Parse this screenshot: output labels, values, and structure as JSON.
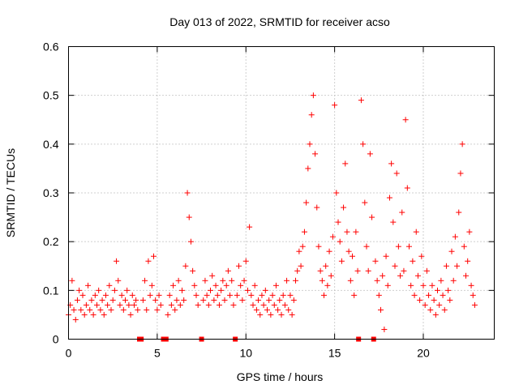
{
  "chart_data": {
    "type": "scatter",
    "title": "Day 013 of 2022, SRMTID for receiver acso",
    "xlabel": "GPS time / hours",
    "ylabel": "SRMTID / TECUs",
    "xlim": [
      0,
      24
    ],
    "ylim": [
      0,
      0.6
    ],
    "grid": true,
    "x_ticks": [
      0,
      5,
      10,
      15,
      20
    ],
    "x_tick_labels": [
      "0",
      "5",
      "10",
      "15",
      "20"
    ],
    "y_ticks": [
      0,
      0.1,
      0.2,
      0.3,
      0.4,
      0.5,
      0.6
    ],
    "y_tick_labels": [
      "0",
      "0.1",
      "0.2",
      "0.3",
      "0.4",
      "0.5",
      "0.6"
    ],
    "marker": "+",
    "series": [
      {
        "name": "SRMTID",
        "color": "#ff0000",
        "data_gaps_at_hours": [
          4.0,
          4.1,
          5.35,
          5.5,
          7.5,
          9.4,
          16.35,
          17.2
        ],
        "points": [
          [
            0.0,
            0.05
          ],
          [
            0.1,
            0.07
          ],
          [
            0.2,
            0.12
          ],
          [
            0.3,
            0.06
          ],
          [
            0.4,
            0.04
          ],
          [
            0.5,
            0.08
          ],
          [
            0.6,
            0.1
          ],
          [
            0.7,
            0.06
          ],
          [
            0.8,
            0.09
          ],
          [
            0.9,
            0.05
          ],
          [
            1.0,
            0.07
          ],
          [
            1.1,
            0.11
          ],
          [
            1.2,
            0.06
          ],
          [
            1.3,
            0.08
          ],
          [
            1.4,
            0.05
          ],
          [
            1.5,
            0.09
          ],
          [
            1.6,
            0.07
          ],
          [
            1.7,
            0.1
          ],
          [
            1.8,
            0.06
          ],
          [
            1.9,
            0.08
          ],
          [
            2.0,
            0.05
          ],
          [
            2.1,
            0.09
          ],
          [
            2.2,
            0.07
          ],
          [
            2.3,
            0.11
          ],
          [
            2.4,
            0.06
          ],
          [
            2.5,
            0.08
          ],
          [
            2.6,
            0.1
          ],
          [
            2.7,
            0.16
          ],
          [
            2.8,
            0.12
          ],
          [
            2.9,
            0.07
          ],
          [
            3.0,
            0.09
          ],
          [
            3.1,
            0.06
          ],
          [
            3.2,
            0.08
          ],
          [
            3.3,
            0.1
          ],
          [
            3.4,
            0.07
          ],
          [
            3.5,
            0.05
          ],
          [
            3.6,
            0.09
          ],
          [
            3.7,
            0.07
          ],
          [
            3.8,
            0.08
          ],
          [
            3.9,
            0.06
          ],
          [
            4.2,
            0.08
          ],
          [
            4.3,
            0.12
          ],
          [
            4.4,
            0.06
          ],
          [
            4.5,
            0.16
          ],
          [
            4.6,
            0.09
          ],
          [
            4.7,
            0.11
          ],
          [
            4.8,
            0.17
          ],
          [
            4.9,
            0.08
          ],
          [
            5.0,
            0.06
          ],
          [
            5.1,
            0.09
          ],
          [
            5.2,
            0.07
          ],
          [
            5.6,
            0.05
          ],
          [
            5.7,
            0.09
          ],
          [
            5.8,
            0.07
          ],
          [
            5.9,
            0.11
          ],
          [
            6.0,
            0.06
          ],
          [
            6.1,
            0.08
          ],
          [
            6.2,
            0.12
          ],
          [
            6.3,
            0.07
          ],
          [
            6.4,
            0.1
          ],
          [
            6.5,
            0.08
          ],
          [
            6.6,
            0.15
          ],
          [
            6.7,
            0.3
          ],
          [
            6.8,
            0.25
          ],
          [
            6.9,
            0.2
          ],
          [
            7.0,
            0.14
          ],
          [
            7.1,
            0.11
          ],
          [
            7.2,
            0.09
          ],
          [
            7.3,
            0.07
          ],
          [
            7.6,
            0.08
          ],
          [
            7.7,
            0.12
          ],
          [
            7.8,
            0.09
          ],
          [
            7.9,
            0.07
          ],
          [
            8.0,
            0.1
          ],
          [
            8.1,
            0.13
          ],
          [
            8.2,
            0.08
          ],
          [
            8.3,
            0.11
          ],
          [
            8.4,
            0.09
          ],
          [
            8.5,
            0.07
          ],
          [
            8.6,
            0.1
          ],
          [
            8.7,
            0.12
          ],
          [
            8.8,
            0.08
          ],
          [
            8.9,
            0.11
          ],
          [
            9.0,
            0.14
          ],
          [
            9.1,
            0.09
          ],
          [
            9.2,
            0.12
          ],
          [
            9.3,
            0.07
          ],
          [
            9.5,
            0.09
          ],
          [
            9.6,
            0.15
          ],
          [
            9.7,
            0.11
          ],
          [
            9.8,
            0.08
          ],
          [
            9.9,
            0.12
          ],
          [
            10.0,
            0.16
          ],
          [
            10.1,
            0.1
          ],
          [
            10.2,
            0.23
          ],
          [
            10.3,
            0.09
          ],
          [
            10.4,
            0.07
          ],
          [
            10.5,
            0.11
          ],
          [
            10.6,
            0.06
          ],
          [
            10.7,
            0.08
          ],
          [
            10.8,
            0.05
          ],
          [
            10.9,
            0.09
          ],
          [
            11.0,
            0.07
          ],
          [
            11.1,
            0.1
          ],
          [
            11.2,
            0.06
          ],
          [
            11.3,
            0.08
          ],
          [
            11.4,
            0.05
          ],
          [
            11.5,
            0.09
          ],
          [
            11.6,
            0.07
          ],
          [
            11.7,
            0.11
          ],
          [
            11.8,
            0.06
          ],
          [
            11.9,
            0.08
          ],
          [
            12.0,
            0.05
          ],
          [
            12.1,
            0.09
          ],
          [
            12.2,
            0.07
          ],
          [
            12.3,
            0.12
          ],
          [
            12.4,
            0.06
          ],
          [
            12.5,
            0.09
          ],
          [
            12.6,
            0.05
          ],
          [
            12.7,
            0.08
          ],
          [
            12.8,
            0.12
          ],
          [
            12.9,
            0.14
          ],
          [
            13.0,
            0.18
          ],
          [
            13.1,
            0.15
          ],
          [
            13.2,
            0.19
          ],
          [
            13.3,
            0.22
          ],
          [
            13.4,
            0.28
          ],
          [
            13.5,
            0.35
          ],
          [
            13.6,
            0.4
          ],
          [
            13.7,
            0.46
          ],
          [
            13.8,
            0.5
          ],
          [
            13.9,
            0.38
          ],
          [
            14.0,
            0.27
          ],
          [
            14.1,
            0.19
          ],
          [
            14.2,
            0.14
          ],
          [
            14.3,
            0.12
          ],
          [
            14.4,
            0.09
          ],
          [
            14.5,
            0.15
          ],
          [
            14.6,
            0.11
          ],
          [
            14.7,
            0.18
          ],
          [
            14.8,
            0.13
          ],
          [
            14.9,
            0.21
          ],
          [
            15.0,
            0.48
          ],
          [
            15.1,
            0.3
          ],
          [
            15.2,
            0.24
          ],
          [
            15.3,
            0.2
          ],
          [
            15.4,
            0.16
          ],
          [
            15.5,
            0.27
          ],
          [
            15.6,
            0.36
          ],
          [
            15.7,
            0.22
          ],
          [
            15.8,
            0.18
          ],
          [
            15.9,
            0.12
          ],
          [
            16.0,
            0.17
          ],
          [
            16.1,
            0.09
          ],
          [
            16.2,
            0.22
          ],
          [
            16.3,
            0.14
          ],
          [
            16.5,
            0.49
          ],
          [
            16.6,
            0.4
          ],
          [
            16.7,
            0.28
          ],
          [
            16.8,
            0.19
          ],
          [
            16.9,
            0.14
          ],
          [
            17.0,
            0.38
          ],
          [
            17.1,
            0.25
          ],
          [
            17.3,
            0.16
          ],
          [
            17.4,
            0.12
          ],
          [
            17.5,
            0.09
          ],
          [
            17.6,
            0.06
          ],
          [
            17.7,
            0.13
          ],
          [
            17.8,
            0.02
          ],
          [
            17.9,
            0.17
          ],
          [
            18.0,
            0.11
          ],
          [
            18.1,
            0.29
          ],
          [
            18.2,
            0.36
          ],
          [
            18.3,
            0.24
          ],
          [
            18.4,
            0.15
          ],
          [
            18.5,
            0.34
          ],
          [
            18.6,
            0.19
          ],
          [
            18.7,
            0.13
          ],
          [
            18.8,
            0.26
          ],
          [
            18.9,
            0.14
          ],
          [
            19.0,
            0.45
          ],
          [
            19.1,
            0.31
          ],
          [
            19.2,
            0.19
          ],
          [
            19.3,
            0.11
          ],
          [
            19.4,
            0.16
          ],
          [
            19.5,
            0.09
          ],
          [
            19.6,
            0.22
          ],
          [
            19.7,
            0.13
          ],
          [
            19.8,
            0.08
          ],
          [
            19.9,
            0.17
          ],
          [
            20.0,
            0.11
          ],
          [
            20.1,
            0.07
          ],
          [
            20.2,
            0.14
          ],
          [
            20.3,
            0.09
          ],
          [
            20.4,
            0.06
          ],
          [
            20.5,
            0.11
          ],
          [
            20.6,
            0.08
          ],
          [
            20.7,
            0.05
          ],
          [
            20.8,
            0.1
          ],
          [
            20.9,
            0.07
          ],
          [
            21.0,
            0.12
          ],
          [
            21.1,
            0.09
          ],
          [
            21.2,
            0.06
          ],
          [
            21.3,
            0.15
          ],
          [
            21.4,
            0.1
          ],
          [
            21.5,
            0.08
          ],
          [
            21.6,
            0.18
          ],
          [
            21.7,
            0.12
          ],
          [
            21.8,
            0.21
          ],
          [
            21.9,
            0.15
          ],
          [
            22.0,
            0.26
          ],
          [
            22.1,
            0.34
          ],
          [
            22.2,
            0.4
          ],
          [
            22.3,
            0.19
          ],
          [
            22.4,
            0.13
          ],
          [
            22.5,
            0.16
          ],
          [
            22.6,
            0.22
          ],
          [
            22.7,
            0.11
          ],
          [
            22.8,
            0.09
          ],
          [
            22.9,
            0.07
          ]
        ]
      }
    ]
  }
}
